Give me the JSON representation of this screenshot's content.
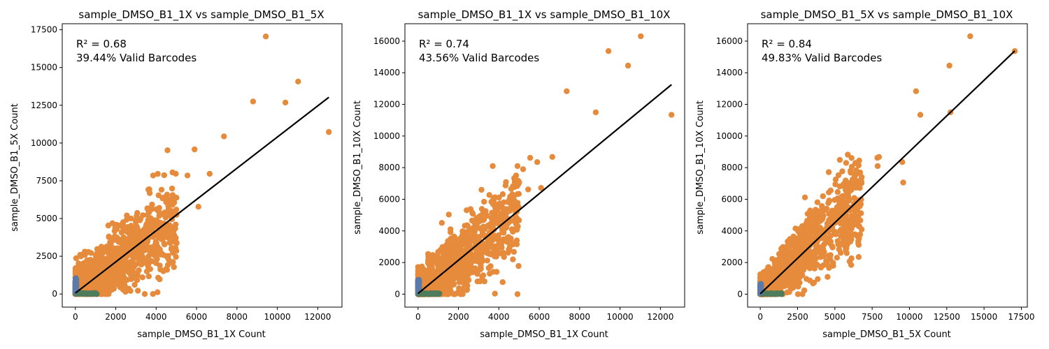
{
  "colors": {
    "valid": "#e68a3c",
    "invalid": "#5b7aa8",
    "invalid_alt": "#4f7d5c",
    "fit_line": "#000000"
  },
  "chart_data": [
    {
      "type": "scatter",
      "title": "sample_DMSO_B1_1X vs sample_DMSO_B1_5X",
      "xlabel": "sample_DMSO_B1_1X Count",
      "ylabel": "sample_DMSO_B1_5X Count",
      "xlim": [
        -650,
        13200
      ],
      "ylim": [
        -870,
        17900
      ],
      "xticks": [
        0,
        2000,
        4000,
        6000,
        8000,
        10000,
        12000
      ],
      "yticks": [
        0,
        2500,
        5000,
        7500,
        10000,
        12500,
        15000,
        17500
      ],
      "annotation_r2": "R² = 0.68",
      "annotation_valid": "39.44% Valid Barcodes",
      "fit_line": {
        "x": [
          0,
          12550
        ],
        "y": [
          60,
          13030
        ]
      },
      "slope": 1.0,
      "spread": 700,
      "outliers": [
        [
          9430,
          17060
        ],
        [
          11030,
          14070
        ],
        [
          8800,
          12750
        ],
        [
          10400,
          12680
        ],
        [
          12550,
          10730
        ],
        [
          7360,
          10440
        ],
        [
          5900,
          9580
        ],
        [
          4560,
          9520
        ],
        [
          6650,
          7960
        ],
        [
          5550,
          7850
        ],
        [
          3850,
          7850
        ],
        [
          4400,
          7870
        ],
        [
          6090,
          5780
        ]
      ],
      "invalid_extent": {
        "x": 50,
        "y": 1050
      }
    },
    {
      "type": "scatter",
      "title": "sample_DMSO_B1_1X vs sample_DMSO_B1_10X",
      "xlabel": "sample_DMSO_B1_1X Count",
      "ylabel": "sample_DMSO_B1_10X Count",
      "xlim": [
        -650,
        13200
      ],
      "ylim": [
        -820,
        17100
      ],
      "xticks": [
        0,
        2000,
        4000,
        6000,
        8000,
        10000,
        12000
      ],
      "yticks": [
        0,
        2000,
        4000,
        6000,
        8000,
        10000,
        12000,
        14000,
        16000
      ],
      "annotation_r2": "R² = 0.74",
      "annotation_valid": "43.56% Valid Barcodes",
      "fit_line": {
        "x": [
          0,
          12550
        ],
        "y": [
          40,
          13250
        ]
      },
      "slope": 1.05,
      "spread": 650,
      "outliers": [
        [
          11030,
          16310
        ],
        [
          9430,
          15370
        ],
        [
          10400,
          14450
        ],
        [
          7360,
          12830
        ],
        [
          8800,
          11500
        ],
        [
          12550,
          11340
        ],
        [
          6650,
          8680
        ],
        [
          5550,
          8620
        ],
        [
          3700,
          8100
        ],
        [
          5900,
          8350
        ],
        [
          5200,
          7900
        ],
        [
          5450,
          6620
        ],
        [
          6090,
          6720
        ]
      ],
      "invalid_extent": {
        "x": 50,
        "y": 900
      }
    },
    {
      "type": "scatter",
      "title": "sample_DMSO_B1_5X vs sample_DMSO_B1_10X",
      "xlabel": "sample_DMSO_B1_5X Count",
      "ylabel": "sample_DMSO_B1_10X Count",
      "xlim": [
        -850,
        17900
      ],
      "ylim": [
        -820,
        17100
      ],
      "xticks": [
        0,
        2500,
        5000,
        7500,
        10000,
        12500,
        15000,
        17500
      ],
      "yticks": [
        0,
        2000,
        4000,
        6000,
        8000,
        10000,
        12000,
        14000,
        16000
      ],
      "annotation_r2": "R² = 0.84",
      "annotation_valid": "49.83% Valid Barcodes",
      "fit_line": {
        "x": [
          0,
          17060
        ],
        "y": [
          20,
          15380
        ]
      },
      "slope": 0.9,
      "spread": 450,
      "outliers": [
        [
          14070,
          16310
        ],
        [
          17060,
          15370
        ],
        [
          12680,
          14450
        ],
        [
          10440,
          12830
        ],
        [
          10730,
          11340
        ],
        [
          12750,
          11500
        ],
        [
          9520,
          8350
        ],
        [
          9580,
          7060
        ],
        [
          7960,
          8680
        ],
        [
          7850,
          8620
        ],
        [
          7870,
          8100
        ],
        [
          6050,
          7800
        ],
        [
          5780,
          6720
        ]
      ],
      "invalid_extent": {
        "x": 50,
        "y": 650
      }
    }
  ]
}
